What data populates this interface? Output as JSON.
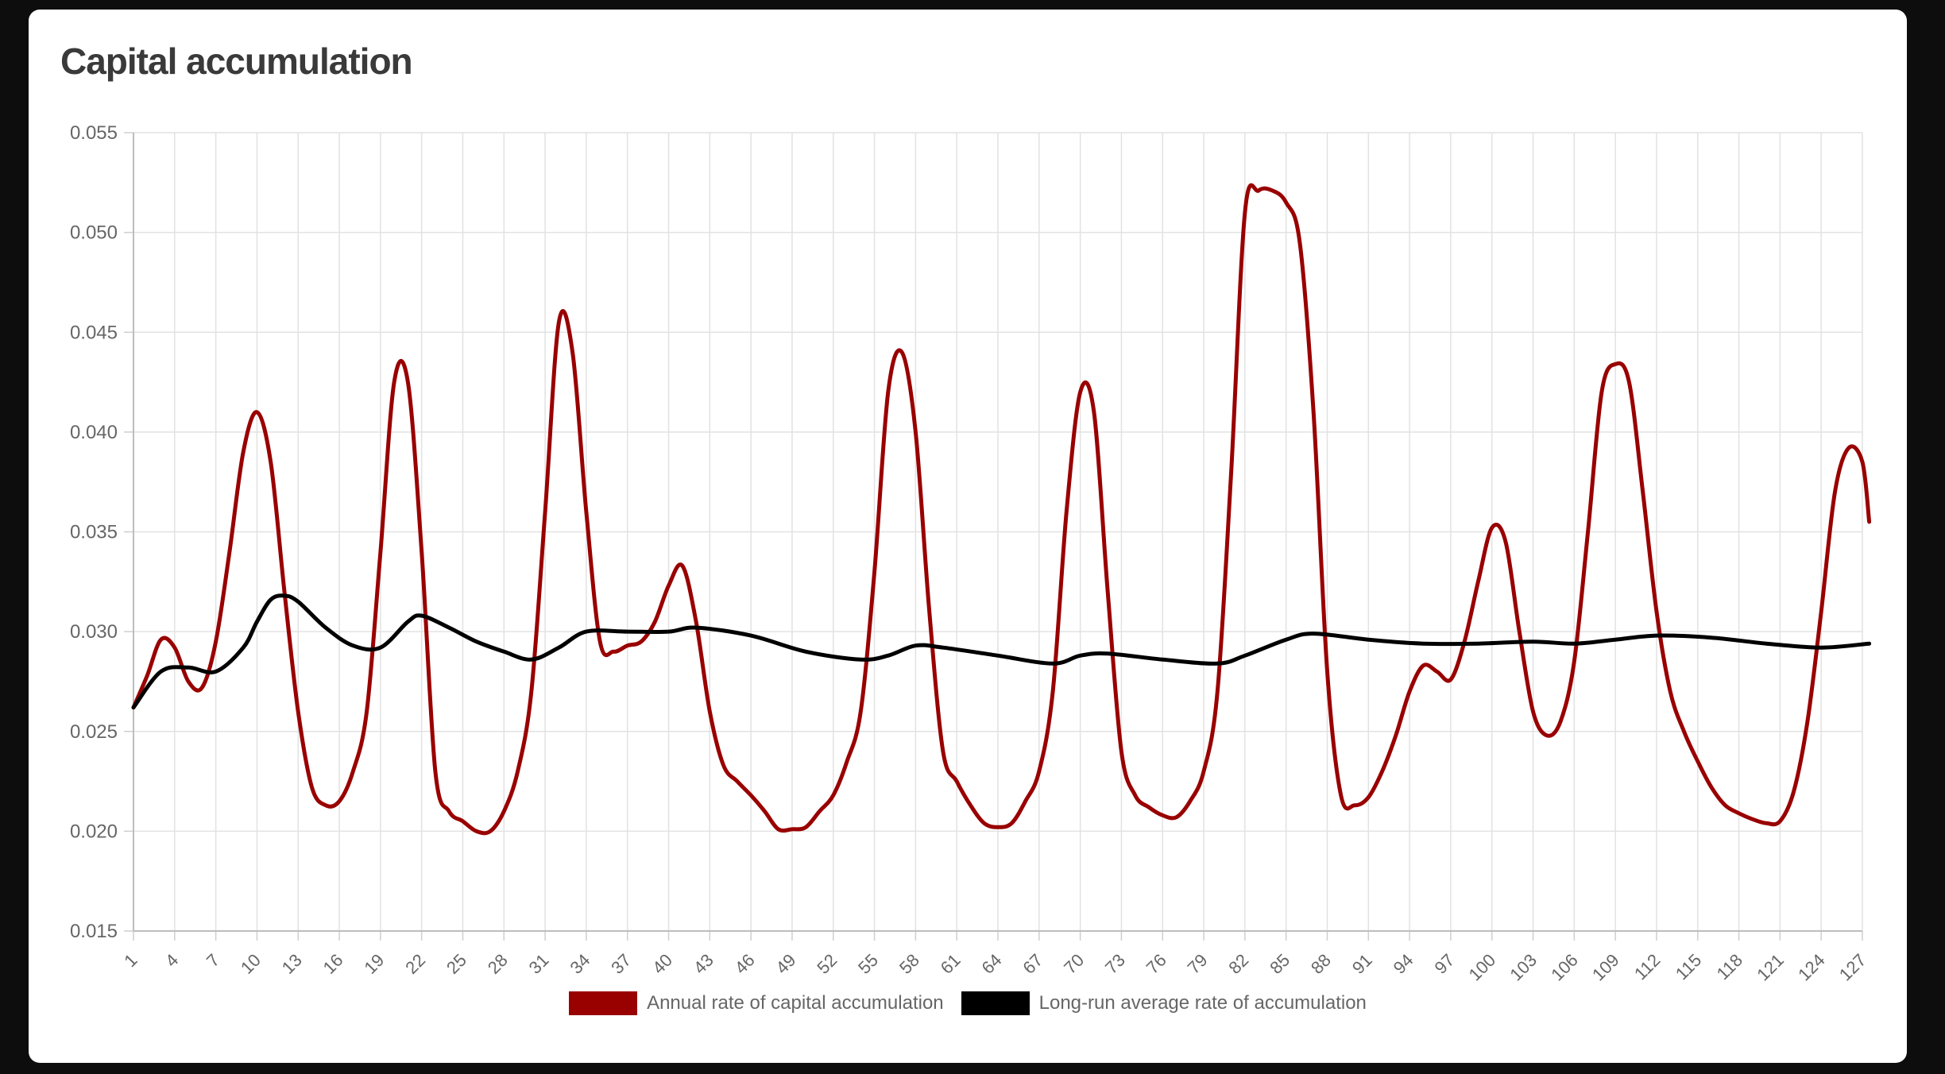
{
  "card": {
    "title": "Capital accumulation"
  },
  "chart_data": {
    "type": "line",
    "title": "Capital accumulation",
    "xlabel": "",
    "ylabel": "",
    "x_range": [
      1,
      127
    ],
    "x_tick_labels": [
      1,
      4,
      7,
      10,
      13,
      16,
      19,
      22,
      25,
      28,
      31,
      34,
      37,
      40,
      43,
      46,
      49,
      52,
      55,
      58,
      61,
      64,
      67,
      70,
      73,
      76,
      79,
      82,
      85,
      88,
      91,
      94,
      97,
      100,
      103,
      106,
      109,
      112,
      115,
      118,
      121,
      124,
      127
    ],
    "ylim": [
      0.015,
      0.055
    ],
    "y_ticks": [
      "0.015",
      "0.020",
      "0.025",
      "0.030",
      "0.035",
      "0.040",
      "0.045",
      "0.050",
      "0.055"
    ],
    "grid": true,
    "legend_position": "bottom-center",
    "series": [
      {
        "name": "Annual rate of capital accumulation",
        "color": "#990000",
        "points": [
          [
            1,
            0.0262
          ],
          [
            2,
            0.0278
          ],
          [
            3,
            0.0296
          ],
          [
            4,
            0.0292
          ],
          [
            5,
            0.0275
          ],
          [
            6,
            0.0272
          ],
          [
            7,
            0.0295
          ],
          [
            8,
            0.034
          ],
          [
            9,
            0.039
          ],
          [
            10,
            0.041
          ],
          [
            11,
            0.0385
          ],
          [
            12,
            0.032
          ],
          [
            13,
            0.026
          ],
          [
            14,
            0.0222
          ],
          [
            15,
            0.0213
          ],
          [
            16,
            0.0215
          ],
          [
            17,
            0.023
          ],
          [
            18,
            0.026
          ],
          [
            19,
            0.034
          ],
          [
            20,
            0.0425
          ],
          [
            21,
            0.0425
          ],
          [
            22,
            0.034
          ],
          [
            23,
            0.023
          ],
          [
            24,
            0.021
          ],
          [
            25,
            0.0205
          ],
          [
            26,
            0.02
          ],
          [
            27,
            0.02
          ],
          [
            28,
            0.021
          ],
          [
            29,
            0.023
          ],
          [
            30,
            0.027
          ],
          [
            31,
            0.036
          ],
          [
            32,
            0.0455
          ],
          [
            33,
            0.044
          ],
          [
            34,
            0.036
          ],
          [
            35,
            0.0295
          ],
          [
            36,
            0.029
          ],
          [
            37,
            0.0293
          ],
          [
            38,
            0.0295
          ],
          [
            39,
            0.0305
          ],
          [
            40,
            0.0323
          ],
          [
            41,
            0.0333
          ],
          [
            42,
            0.0305
          ],
          [
            43,
            0.026
          ],
          [
            44,
            0.0233
          ],
          [
            45,
            0.0225
          ],
          [
            46,
            0.0218
          ],
          [
            47,
            0.021
          ],
          [
            48,
            0.0201
          ],
          [
            49,
            0.0201
          ],
          [
            50,
            0.0202
          ],
          [
            51,
            0.021
          ],
          [
            52,
            0.0218
          ],
          [
            53,
            0.0235
          ],
          [
            54,
            0.026
          ],
          [
            55,
            0.033
          ],
          [
            56,
            0.042
          ],
          [
            57,
            0.044
          ],
          [
            58,
            0.04
          ],
          [
            59,
            0.031
          ],
          [
            60,
            0.024
          ],
          [
            61,
            0.0225
          ],
          [
            62,
            0.0213
          ],
          [
            63,
            0.0204
          ],
          [
            64,
            0.0202
          ],
          [
            65,
            0.0204
          ],
          [
            66,
            0.0215
          ],
          [
            67,
            0.023
          ],
          [
            68,
            0.027
          ],
          [
            69,
            0.036
          ],
          [
            70,
            0.042
          ],
          [
            71,
            0.041
          ],
          [
            72,
            0.032
          ],
          [
            73,
            0.024
          ],
          [
            74,
            0.0218
          ],
          [
            75,
            0.0212
          ],
          [
            76,
            0.0208
          ],
          [
            77,
            0.0207
          ],
          [
            78,
            0.0215
          ],
          [
            79,
            0.023
          ],
          [
            80,
            0.027
          ],
          [
            81,
            0.038
          ],
          [
            82,
            0.051
          ],
          [
            83,
            0.0521
          ],
          [
            84,
            0.0521
          ],
          [
            85,
            0.0515
          ],
          [
            86,
            0.0495
          ],
          [
            87,
            0.041
          ],
          [
            88,
            0.028
          ],
          [
            89,
            0.0218
          ],
          [
            90,
            0.0213
          ],
          [
            91,
            0.0217
          ],
          [
            92,
            0.023
          ],
          [
            93,
            0.0248
          ],
          [
            94,
            0.027
          ],
          [
            95,
            0.0283
          ],
          [
            96,
            0.028
          ],
          [
            97,
            0.0276
          ],
          [
            98,
            0.0295
          ],
          [
            99,
            0.0325
          ],
          [
            100,
            0.0352
          ],
          [
            101,
            0.0345
          ],
          [
            102,
            0.03
          ],
          [
            103,
            0.026
          ],
          [
            104,
            0.0248
          ],
          [
            105,
            0.0255
          ],
          [
            106,
            0.0285
          ],
          [
            107,
            0.035
          ],
          [
            108,
            0.042
          ],
          [
            109,
            0.0434
          ],
          [
            110,
            0.0425
          ],
          [
            111,
            0.037
          ],
          [
            112,
            0.031
          ],
          [
            113,
            0.027
          ],
          [
            114,
            0.025
          ],
          [
            115,
            0.0235
          ],
          [
            116,
            0.0222
          ],
          [
            117,
            0.0213
          ],
          [
            118,
            0.0209
          ],
          [
            119,
            0.0206
          ],
          [
            120,
            0.0204
          ],
          [
            121,
            0.0205
          ],
          [
            122,
            0.022
          ],
          [
            123,
            0.0255
          ],
          [
            124,
            0.031
          ],
          [
            125,
            0.037
          ],
          [
            126,
            0.0392
          ],
          [
            127,
            0.0385
          ],
          [
            127.5,
            0.0355
          ]
        ]
      },
      {
        "name": "Long-run average rate of accumulation",
        "color": "#000000",
        "points": [
          [
            1,
            0.0262
          ],
          [
            3,
            0.028
          ],
          [
            5,
            0.0282
          ],
          [
            7,
            0.028
          ],
          [
            9,
            0.0292
          ],
          [
            10,
            0.0305
          ],
          [
            11,
            0.0316
          ],
          [
            12,
            0.0318
          ],
          [
            13,
            0.0315
          ],
          [
            15,
            0.0302
          ],
          [
            17,
            0.0293
          ],
          [
            19,
            0.0292
          ],
          [
            21,
            0.0305
          ],
          [
            22,
            0.0308
          ],
          [
            24,
            0.0302
          ],
          [
            26,
            0.0295
          ],
          [
            28,
            0.029
          ],
          [
            30,
            0.0286
          ],
          [
            32,
            0.0292
          ],
          [
            34,
            0.03
          ],
          [
            37,
            0.03
          ],
          [
            40,
            0.03
          ],
          [
            42,
            0.0302
          ],
          [
            46,
            0.0298
          ],
          [
            50,
            0.029
          ],
          [
            54,
            0.0286
          ],
          [
            56,
            0.0288
          ],
          [
            58,
            0.0293
          ],
          [
            60,
            0.0292
          ],
          [
            64,
            0.0288
          ],
          [
            68,
            0.0284
          ],
          [
            70,
            0.0288
          ],
          [
            72,
            0.0289
          ],
          [
            76,
            0.0286
          ],
          [
            80,
            0.0284
          ],
          [
            82,
            0.0288
          ],
          [
            85,
            0.0296
          ],
          [
            87,
            0.0299
          ],
          [
            91,
            0.0296
          ],
          [
            95,
            0.0294
          ],
          [
            99,
            0.0294
          ],
          [
            103,
            0.0295
          ],
          [
            106,
            0.0294
          ],
          [
            109,
            0.0296
          ],
          [
            112,
            0.0298
          ],
          [
            116,
            0.0297
          ],
          [
            120,
            0.0294
          ],
          [
            124,
            0.0292
          ],
          [
            127.5,
            0.0294
          ]
        ]
      }
    ]
  }
}
